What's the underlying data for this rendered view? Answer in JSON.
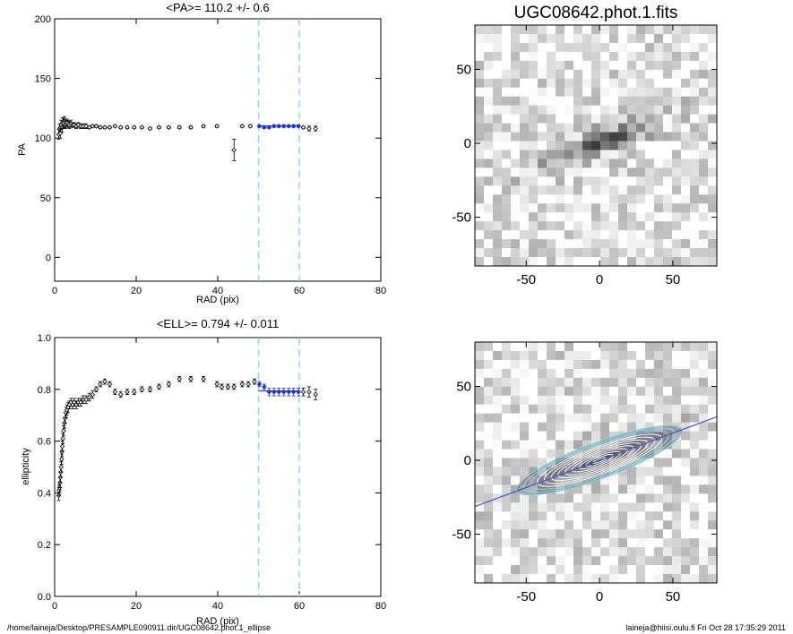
{
  "footer": {
    "path": "/home/laineja/Desktop/PRESAMPLE090911.dir/UGC08642.phot.1_ellipse",
    "stamp": "laineja@hiisi.oulu.fi  Fri Oct 28 17:35:29 2011"
  },
  "colors": {
    "fit_range_lines": "#7fe0e8",
    "fit_points": "#2233cc",
    "mean_line": "#3344aa",
    "contours": "#8fd8d8",
    "major_axis": "#5555bb"
  },
  "chart_data": [
    {
      "type": "scatter",
      "title": "<PA>= 110.2 +/-   0.6",
      "xlabel": "RAD (pix)",
      "ylabel": "PA",
      "xlim": [
        0,
        80
      ],
      "ylim": [
        -20,
        200
      ],
      "xticks": [
        0,
        20,
        40,
        60,
        80
      ],
      "yticks": [
        0,
        50,
        100,
        150,
        200
      ],
      "vlines": [
        50,
        60
      ],
      "mean": 110.2,
      "mean_range": [
        50,
        60
      ],
      "points": {
        "x": [
          1.0,
          1.2,
          1.4,
          1.6,
          1.8,
          2.0,
          2.2,
          2.4,
          2.6,
          2.8,
          3.0,
          3.3,
          3.6,
          4.0,
          4.4,
          4.8,
          5.3,
          5.8,
          6.4,
          7.0,
          7.7,
          8.5,
          9.3,
          10.2,
          11.2,
          12.3,
          13.5,
          14.8,
          16.2,
          17.8,
          19.5,
          21.4,
          23.4,
          25.6,
          28.0,
          30.6,
          33.4,
          36.5,
          39.8,
          44.0,
          46.0,
          48.0,
          50.2,
          51.4,
          52.6,
          53.8,
          55.0,
          56.2,
          57.4,
          58.6,
          59.8,
          61.0,
          62.4,
          64.0
        ],
        "y": [
          103,
          108,
          104,
          111,
          109,
          113,
          112,
          114,
          111,
          112,
          113,
          112,
          111,
          112,
          111,
          111,
          110,
          111,
          110,
          110,
          110,
          109,
          110,
          110,
          109,
          109,
          109,
          110,
          109,
          109,
          109,
          109,
          108,
          109,
          109,
          109,
          109,
          110,
          110,
          90,
          110,
          110,
          110,
          109,
          109,
          110,
          110,
          110,
          110,
          110,
          110,
          109,
          108,
          108
        ],
        "err": [
          4,
          4,
          4,
          4,
          4,
          4,
          4,
          4,
          3,
          3,
          3,
          3,
          3,
          3,
          2,
          2,
          2,
          2,
          2,
          2,
          2,
          1,
          1,
          1,
          1,
          1,
          1,
          1,
          1,
          1,
          1,
          1,
          1,
          1,
          1,
          1,
          1,
          1,
          1,
          9,
          1,
          1,
          1,
          1,
          1,
          1,
          1,
          1,
          1,
          1,
          1,
          1,
          2,
          2
        ],
        "fit_range": [
          50,
          60
        ]
      }
    },
    {
      "type": "scatter",
      "title": "<ELL>= 0.794 +/-  0.011",
      "xlabel": "RAD (pix)",
      "ylabel": "ellipticity",
      "xlim": [
        0,
        80
      ],
      "ylim": [
        0,
        1
      ],
      "xticks": [
        0,
        20,
        40,
        60,
        80
      ],
      "yticks": [
        0.0,
        0.2,
        0.4,
        0.6,
        0.8,
        1.0
      ],
      "yticklabels": [
        "0.0",
        "0.2",
        "0.4",
        "0.6",
        "0.8",
        "1.0"
      ],
      "vlines": [
        50,
        60
      ],
      "mean": 0.794,
      "mean_range": [
        50,
        60
      ],
      "points": {
        "x": [
          1.0,
          1.1,
          1.2,
          1.3,
          1.4,
          1.5,
          1.6,
          1.7,
          1.8,
          1.9,
          2.0,
          2.2,
          2.4,
          2.6,
          2.8,
          3.0,
          3.3,
          3.6,
          4.0,
          4.4,
          4.8,
          5.3,
          5.8,
          6.4,
          7.0,
          7.7,
          8.5,
          9.3,
          10.2,
          11.2,
          12.3,
          13.5,
          14.8,
          16.2,
          17.8,
          19.5,
          21.4,
          23.4,
          25.6,
          28.0,
          30.6,
          33.4,
          36.5,
          39.8,
          41.0,
          42.5,
          44.0,
          46.0,
          47.5,
          49.0,
          50.2,
          51.4,
          52.6,
          53.8,
          55.0,
          56.2,
          57.4,
          58.6,
          59.8,
          61.0,
          62.4,
          64.0
        ],
        "y": [
          0.39,
          0.41,
          0.42,
          0.44,
          0.46,
          0.48,
          0.5,
          0.53,
          0.56,
          0.58,
          0.61,
          0.64,
          0.67,
          0.69,
          0.71,
          0.72,
          0.73,
          0.74,
          0.75,
          0.74,
          0.75,
          0.74,
          0.75,
          0.75,
          0.76,
          0.76,
          0.77,
          0.78,
          0.8,
          0.82,
          0.83,
          0.82,
          0.79,
          0.78,
          0.79,
          0.79,
          0.8,
          0.8,
          0.81,
          0.82,
          0.84,
          0.84,
          0.84,
          0.82,
          0.81,
          0.81,
          0.81,
          0.82,
          0.82,
          0.83,
          0.82,
          0.81,
          0.79,
          0.79,
          0.79,
          0.79,
          0.79,
          0.79,
          0.79,
          0.79,
          0.79,
          0.78
        ],
        "err": [
          0.02,
          0.02,
          0.02,
          0.02,
          0.02,
          0.02,
          0.02,
          0.02,
          0.02,
          0.02,
          0.02,
          0.02,
          0.02,
          0.02,
          0.02,
          0.02,
          0.02,
          0.015,
          0.015,
          0.015,
          0.015,
          0.015,
          0.015,
          0.015,
          0.015,
          0.015,
          0.015,
          0.015,
          0.01,
          0.01,
          0.01,
          0.01,
          0.01,
          0.01,
          0.01,
          0.01,
          0.01,
          0.01,
          0.01,
          0.01,
          0.01,
          0.01,
          0.01,
          0.01,
          0.01,
          0.01,
          0.01,
          0.01,
          0.01,
          0.01,
          0.01,
          0.01,
          0.015,
          0.015,
          0.015,
          0.015,
          0.015,
          0.015,
          0.015,
          0.015,
          0.02,
          0.02
        ],
        "fit_range": [
          50,
          60
        ]
      }
    },
    {
      "type": "heatmap",
      "title": "UGC08642.phot.1.fits",
      "xlim": [
        -85,
        80
      ],
      "ylim": [
        -83,
        80
      ],
      "xticks": [
        -50,
        0,
        50
      ],
      "yticks": [
        -50,
        0,
        50
      ],
      "colormap": "grayscale inverted (dark = bright)",
      "galaxy": {
        "center": [
          0,
          0
        ],
        "pa": 110.2,
        "ell": 0.794,
        "sma": 55
      }
    },
    {
      "type": "heatmap",
      "title": "",
      "xlim": [
        -85,
        80
      ],
      "ylim": [
        -83,
        80
      ],
      "xticks": [
        -50,
        0,
        50
      ],
      "yticks": [
        -50,
        0,
        50
      ],
      "overlay": "isophote ellipse contours with major-axis line",
      "galaxy": {
        "center": [
          0,
          0
        ],
        "pa": 110.2,
        "ell": 0.794,
        "sma": 55
      },
      "contour_count": 12,
      "contour_max_sma": 60
    }
  ]
}
